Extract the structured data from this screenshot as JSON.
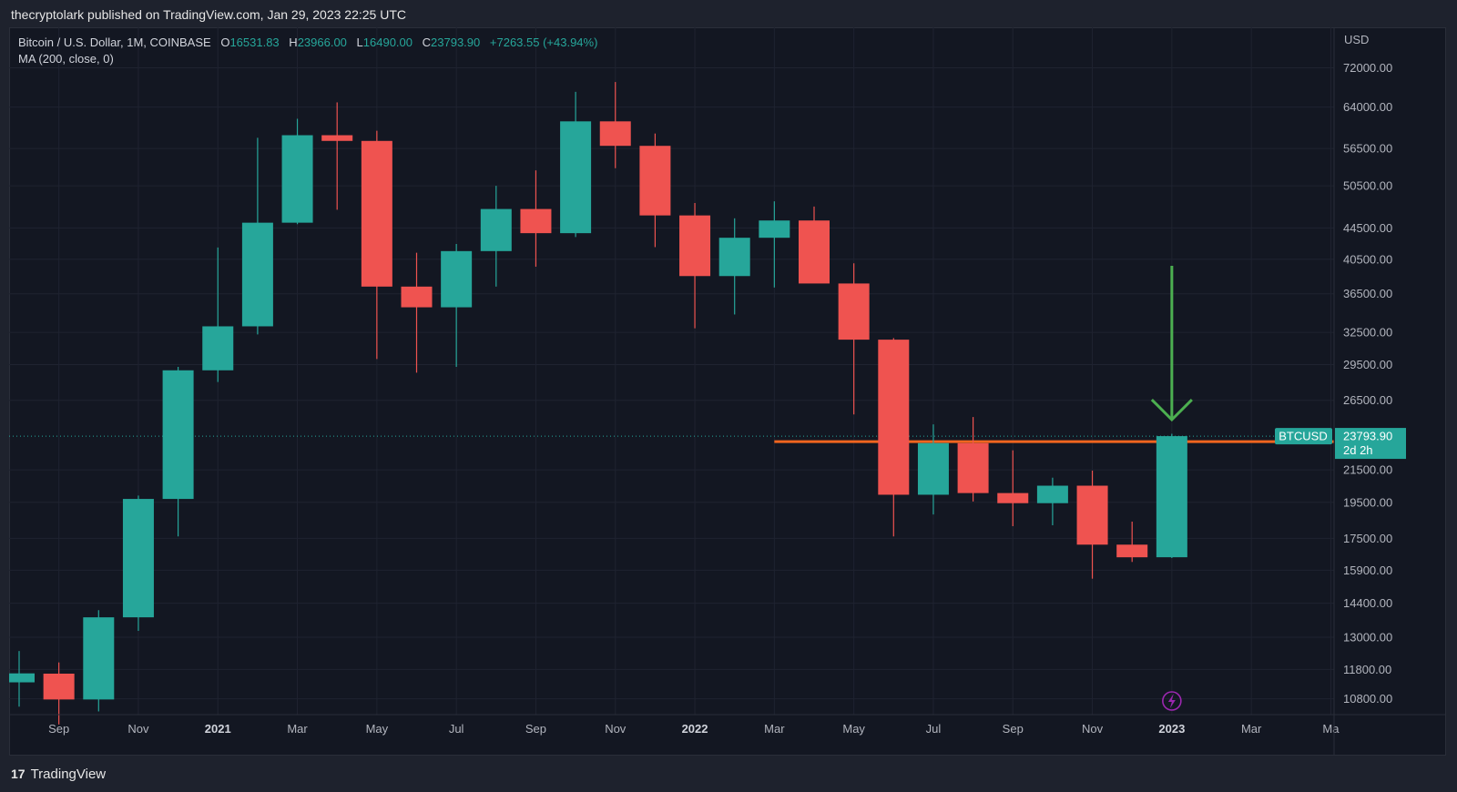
{
  "header": {
    "published_line": "thecryptolark published on TradingView.com, Jan 29, 2023 22:25 UTC"
  },
  "legend": {
    "symbol": "Bitcoin / U.S. Dollar, 1M, COINBASE",
    "o_label": "O",
    "o_value": "16531.83",
    "h_label": "H",
    "h_value": "23966.00",
    "l_label": "L",
    "l_value": "16490.00",
    "c_label": "C",
    "c_value": "23793.90",
    "change": "+7263.55 (+43.94%)",
    "indicator": "MA (200, close, 0)"
  },
  "price_axis": {
    "currency": "USD",
    "ticks": [
      "72000.00",
      "64000.00",
      "56500.00",
      "50500.00",
      "44500.00",
      "40500.00",
      "36500.00",
      "32500.00",
      "29500.00",
      "26500.00",
      "21500.00",
      "19500.00",
      "17500.00",
      "15900.00",
      "14400.00",
      "13000.00",
      "11800.00",
      "10800.00"
    ]
  },
  "price_tag": {
    "symbol": "BTCUSD",
    "price": "23793.90",
    "countdown": "2d 2h"
  },
  "time_axis": {
    "labels": [
      {
        "text": "Sep",
        "bold": false
      },
      {
        "text": "Nov",
        "bold": false
      },
      {
        "text": "2021",
        "bold": true
      },
      {
        "text": "Mar",
        "bold": false
      },
      {
        "text": "May",
        "bold": false
      },
      {
        "text": "Jul",
        "bold": false
      },
      {
        "text": "Sep",
        "bold": false
      },
      {
        "text": "Nov",
        "bold": false
      },
      {
        "text": "2022",
        "bold": true
      },
      {
        "text": "Mar",
        "bold": false
      },
      {
        "text": "May",
        "bold": false
      },
      {
        "text": "Jul",
        "bold": false
      },
      {
        "text": "Sep",
        "bold": false
      },
      {
        "text": "Nov",
        "bold": false
      },
      {
        "text": "2023",
        "bold": true
      },
      {
        "text": "Mar",
        "bold": false
      },
      {
        "text": "Ma",
        "bold": false
      }
    ]
  },
  "footer": {
    "brand": "TradingView",
    "brand_mark": "17"
  },
  "colors": {
    "up": "#26a69a",
    "down": "#ef5350",
    "background": "#131722",
    "grid": "#1f2330",
    "horizontal_line": "#f0651f",
    "arrow": "#4caf50",
    "lightning_icon": "#9c27b0"
  },
  "chart_data": {
    "type": "candlestick",
    "scale": "log",
    "ylim": [
      10300,
      77000
    ],
    "timeframe": "1M",
    "candles": [
      {
        "month": "2020-08",
        "open": 11350,
        "high": 12470,
        "low": 10550,
        "close": 11660
      },
      {
        "month": "2020-09",
        "open": 11650,
        "high": 12050,
        "low": 10000,
        "close": 10780
      },
      {
        "month": "2020-10",
        "open": 10780,
        "high": 14100,
        "low": 10400,
        "close": 13800
      },
      {
        "month": "2020-11",
        "open": 13800,
        "high": 19900,
        "low": 13250,
        "close": 19700
      },
      {
        "month": "2020-12",
        "open": 19700,
        "high": 29300,
        "low": 17600,
        "close": 29000
      },
      {
        "month": "2021-01",
        "open": 29000,
        "high": 41950,
        "low": 28000,
        "close": 33100
      },
      {
        "month": "2021-02",
        "open": 33100,
        "high": 58350,
        "low": 32300,
        "close": 45200
      },
      {
        "month": "2021-03",
        "open": 45200,
        "high": 61780,
        "low": 45000,
        "close": 58800
      },
      {
        "month": "2021-04",
        "open": 58800,
        "high": 64900,
        "low": 47000,
        "close": 57800
      },
      {
        "month": "2021-05",
        "open": 57800,
        "high": 59600,
        "low": 30000,
        "close": 37300
      },
      {
        "month": "2021-06",
        "open": 37300,
        "high": 41300,
        "low": 28800,
        "close": 35050
      },
      {
        "month": "2021-07",
        "open": 35050,
        "high": 42400,
        "low": 29300,
        "close": 41500
      },
      {
        "month": "2021-08",
        "open": 41500,
        "high": 50500,
        "low": 37300,
        "close": 47100
      },
      {
        "month": "2021-09",
        "open": 47100,
        "high": 52900,
        "low": 39600,
        "close": 43800
      },
      {
        "month": "2021-10",
        "open": 43800,
        "high": 67000,
        "low": 43300,
        "close": 61300
      },
      {
        "month": "2021-11",
        "open": 61300,
        "high": 69000,
        "low": 53250,
        "close": 56950
      },
      {
        "month": "2021-12",
        "open": 56950,
        "high": 59100,
        "low": 42000,
        "close": 46200
      },
      {
        "month": "2022-01",
        "open": 46200,
        "high": 47950,
        "low": 32900,
        "close": 38500
      },
      {
        "month": "2022-02",
        "open": 38500,
        "high": 45800,
        "low": 34300,
        "close": 43200
      },
      {
        "month": "2022-03",
        "open": 43200,
        "high": 48200,
        "low": 37200,
        "close": 45500
      },
      {
        "month": "2022-04",
        "open": 45500,
        "high": 47450,
        "low": 37700,
        "close": 37650
      },
      {
        "month": "2022-05",
        "open": 37650,
        "high": 40000,
        "low": 25400,
        "close": 31800
      },
      {
        "month": "2022-06",
        "open": 31800,
        "high": 31950,
        "low": 17600,
        "close": 19950
      },
      {
        "month": "2022-07",
        "open": 19950,
        "high": 24650,
        "low": 18800,
        "close": 23300
      },
      {
        "month": "2022-08",
        "open": 23300,
        "high": 25200,
        "low": 19550,
        "close": 20050
      },
      {
        "month": "2022-09",
        "open": 20050,
        "high": 22800,
        "low": 18150,
        "close": 19450
      },
      {
        "month": "2022-10",
        "open": 19450,
        "high": 21000,
        "low": 18200,
        "close": 20500
      },
      {
        "month": "2022-11",
        "open": 20500,
        "high": 21450,
        "low": 15500,
        "close": 17170
      },
      {
        "month": "2022-12",
        "open": 17170,
        "high": 18400,
        "low": 16300,
        "close": 16530
      },
      {
        "month": "2023-01",
        "open": 16531.83,
        "high": 23966.0,
        "low": 16490.0,
        "close": 23793.9
      }
    ],
    "horizontal_line": {
      "price": 23400,
      "from_month": "2022-03"
    },
    "arrow": {
      "month": "2023-01",
      "from_price": 39700,
      "to_price": 25000
    },
    "current_price": 23793.9
  }
}
